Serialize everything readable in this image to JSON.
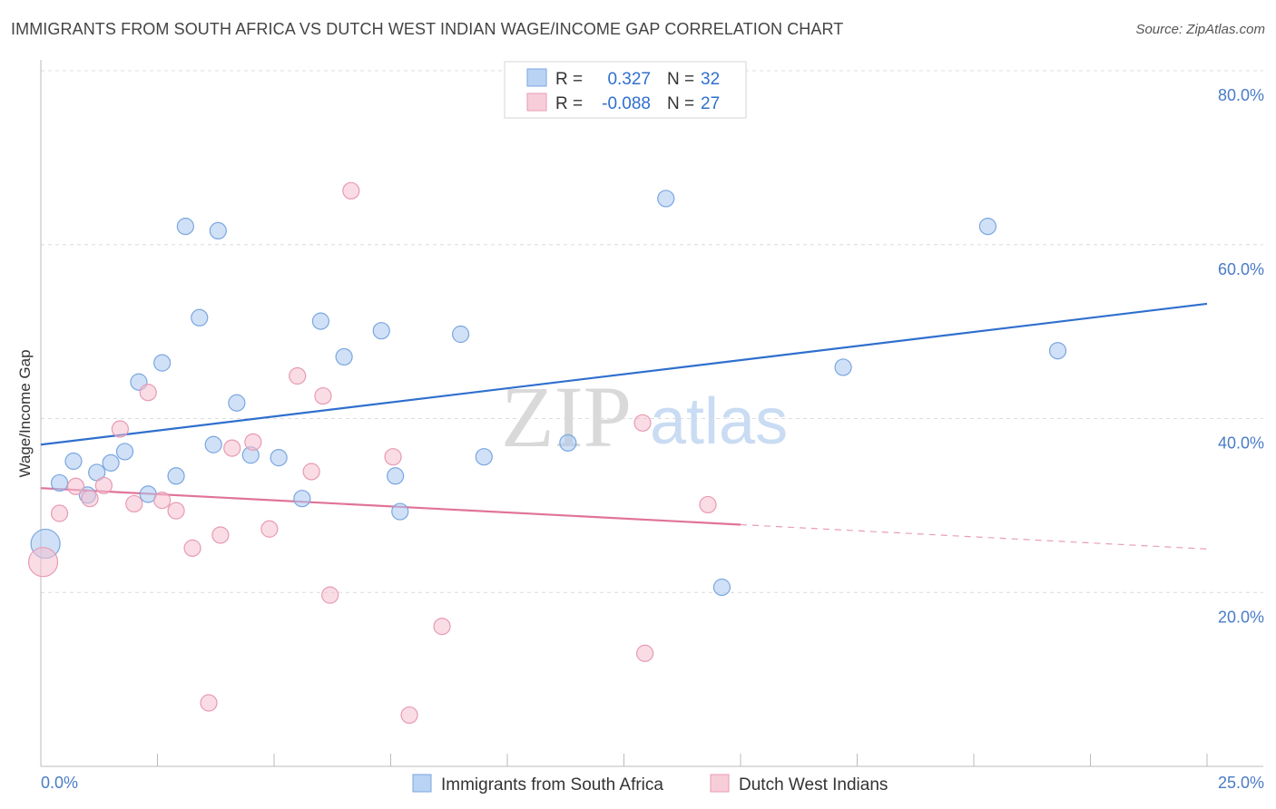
{
  "title": "IMMIGRANTS FROM SOUTH AFRICA VS DUTCH WEST INDIAN WAGE/INCOME GAP CORRELATION CHART",
  "source": "Source: ZipAtlas.com",
  "watermark": {
    "zip": "ZIP",
    "atlas": "atlas"
  },
  "legend_top": {
    "rows": [
      {
        "r_label": "R =",
        "r_value": "0.327",
        "n_label": "N =",
        "n_value": "32"
      },
      {
        "r_label": "R =",
        "r_value": "-0.088",
        "n_label": "N =",
        "n_value": "27"
      }
    ]
  },
  "chart_data": {
    "type": "scatter",
    "title": "IMMIGRANTS FROM SOUTH AFRICA VS DUTCH WEST INDIAN WAGE/INCOME GAP CORRELATION CHART",
    "xlabel": "",
    "ylabel": "Wage/Income Gap",
    "xlim": [
      0,
      25
    ],
    "ylim": [
      0,
      80
    ],
    "x_tick_labels": [
      "0.0%",
      "25.0%"
    ],
    "y_ticks": [
      20,
      40,
      60,
      80
    ],
    "y_tick_labels": [
      "20.0%",
      "40.0%",
      "60.0%",
      "80.0%"
    ],
    "grid": true,
    "legend_position": "top-center",
    "series": [
      {
        "name": "Immigrants from South Africa",
        "color": "#a9c8f0",
        "line_color": "#2f6fce",
        "points": [
          [
            0.4,
            32.6
          ],
          [
            0.7,
            35.1
          ],
          [
            1.0,
            31.2
          ],
          [
            1.2,
            33.8
          ],
          [
            1.5,
            34.9
          ],
          [
            1.8,
            36.2
          ],
          [
            2.1,
            44.2
          ],
          [
            2.3,
            31.3
          ],
          [
            2.6,
            46.4
          ],
          [
            2.9,
            33.4
          ],
          [
            3.1,
            62.1
          ],
          [
            3.4,
            51.6
          ],
          [
            3.7,
            37.0
          ],
          [
            3.8,
            61.6
          ],
          [
            4.2,
            41.8
          ],
          [
            4.5,
            35.8
          ],
          [
            5.1,
            35.5
          ],
          [
            5.6,
            30.8
          ],
          [
            6.0,
            51.2
          ],
          [
            6.5,
            47.1
          ],
          [
            7.3,
            50.1
          ],
          [
            7.6,
            33.4
          ],
          [
            7.7,
            29.3
          ],
          [
            9.0,
            49.7
          ],
          [
            9.5,
            35.6
          ],
          [
            11.3,
            37.2
          ],
          [
            13.4,
            65.3
          ],
          [
            14.6,
            20.6
          ],
          [
            17.2,
            45.9
          ],
          [
            20.3,
            62.1
          ],
          [
            21.8,
            47.8
          ],
          [
            0.1,
            25.6
          ]
        ],
        "trend": {
          "x": [
            0,
            25
          ],
          "y": [
            37.0,
            53.2
          ]
        }
      },
      {
        "name": "Dutch West Indians",
        "color": "#f5bfd0",
        "line_color": "#e0739a",
        "points": [
          [
            0.05,
            23.5
          ],
          [
            0.4,
            29.1
          ],
          [
            0.75,
            32.2
          ],
          [
            1.05,
            30.8
          ],
          [
            1.35,
            32.3
          ],
          [
            1.7,
            38.8
          ],
          [
            2.0,
            30.2
          ],
          [
            2.3,
            43.0
          ],
          [
            2.6,
            30.6
          ],
          [
            2.9,
            29.4
          ],
          [
            3.25,
            25.1
          ],
          [
            3.6,
            7.3
          ],
          [
            3.85,
            26.6
          ],
          [
            4.1,
            36.6
          ],
          [
            4.55,
            37.3
          ],
          [
            4.9,
            27.3
          ],
          [
            5.5,
            44.9
          ],
          [
            5.8,
            33.9
          ],
          [
            6.05,
            42.6
          ],
          [
            6.2,
            19.7
          ],
          [
            6.65,
            66.2
          ],
          [
            7.55,
            35.6
          ],
          [
            7.9,
            5.9
          ],
          [
            8.6,
            16.1
          ],
          [
            12.9,
            39.5
          ],
          [
            12.95,
            13.0
          ],
          [
            14.3,
            30.1
          ]
        ],
        "trend": {
          "x": [
            0,
            15
          ],
          "y": [
            32.0,
            27.8
          ]
        },
        "trend_dashed": {
          "x": [
            15,
            25
          ],
          "y": [
            27.8,
            25.0
          ]
        }
      }
    ]
  }
}
